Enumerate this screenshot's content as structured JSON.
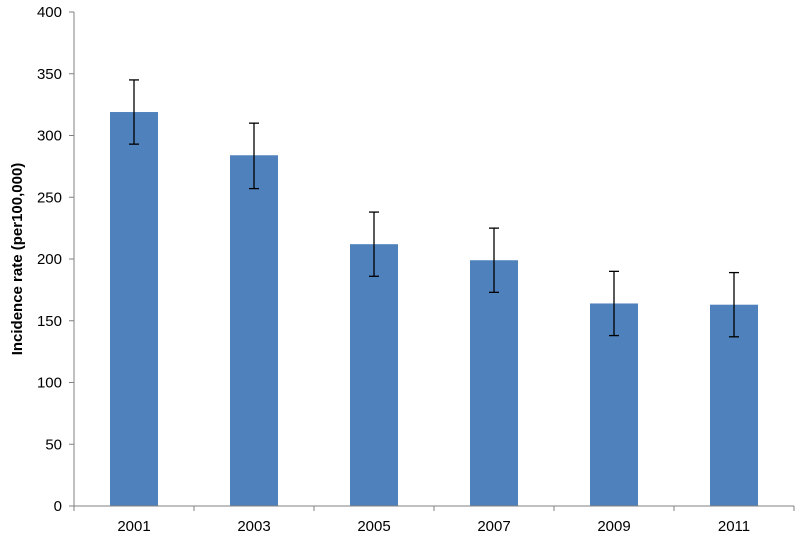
{
  "chart_data": {
    "type": "bar",
    "title": "",
    "xlabel": "",
    "ylabel": "Incidence rate (per100,000)",
    "categories": [
      "2001",
      "2003",
      "2005",
      "2007",
      "2009",
      "2011"
    ],
    "values": [
      319,
      284,
      212,
      199,
      164,
      163
    ],
    "error_low": [
      293,
      257,
      186,
      173,
      138,
      137
    ],
    "error_high": [
      345,
      310,
      238,
      225,
      190,
      189
    ],
    "ylim": [
      0,
      400
    ],
    "yticks": [
      0,
      50,
      100,
      150,
      200,
      250,
      300,
      350,
      400
    ],
    "grid": false,
    "legend": "none",
    "bar_color": "#4F81BD",
    "axis_color": "#808080",
    "error_bar_color": "#000000"
  }
}
